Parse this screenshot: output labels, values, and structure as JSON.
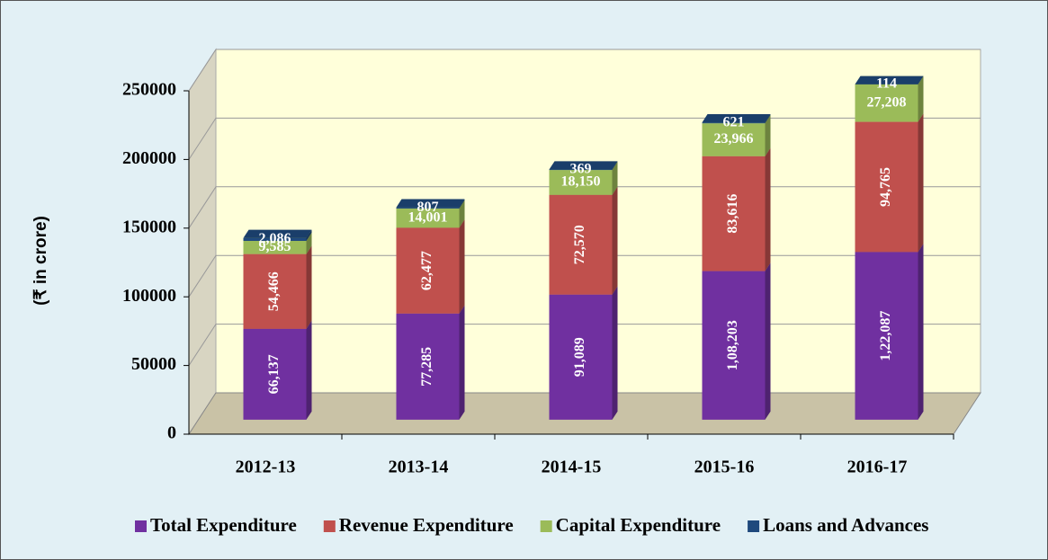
{
  "chart_data": {
    "type": "bar",
    "stacked": true,
    "y_label": "(₹ in crore)",
    "categories": [
      "2012-13",
      "2013-14",
      "2014-15",
      "2015-16",
      "2016-17"
    ],
    "ylim": [
      0,
      250000
    ],
    "yticks": [
      0,
      50000,
      100000,
      150000,
      200000,
      250000
    ],
    "grid": true,
    "legend": "bottom",
    "series": [
      {
        "name": "Total Expenditure",
        "color": "#7030a0",
        "values": [
          66137,
          77285,
          91089,
          108203,
          122087
        ],
        "value_labels": [
          "66,137",
          "77,285",
          "91,089",
          "1,08,203",
          "1,22,087"
        ]
      },
      {
        "name": "Revenue Expenditure",
        "color": "#c0504d",
        "values": [
          54466,
          62477,
          72570,
          83616,
          94765
        ],
        "value_labels": [
          "54,466",
          "62,477",
          "72,570",
          "83,616",
          "94,765"
        ]
      },
      {
        "name": "Capital Expenditure",
        "color": "#9bbb59",
        "values": [
          9585,
          14001,
          18150,
          23966,
          27208
        ],
        "value_labels": [
          "9,585",
          "14,001",
          "18,150",
          "23,966",
          "27,208"
        ]
      },
      {
        "name": "Loans and Advances",
        "color": "#1f497d",
        "values": [
          2086,
          807,
          369,
          621,
          114
        ],
        "value_labels": [
          "2,086",
          "807",
          "369",
          "621",
          "114"
        ]
      }
    ]
  }
}
